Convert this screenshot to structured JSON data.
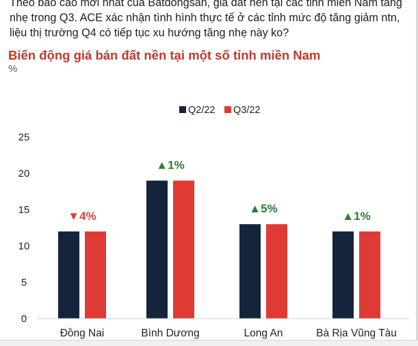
{
  "post": {
    "text": "Theo báo cáo mới nhất của Batdongsan, giá đất nền tại các tỉnh miền Nam tăng nhẹ trong Q3. ACE xác nhận tình hình thực tế ở các tỉnh mức độ tăng giảm ntn, liệu thị trường Q4 có tiếp tục xu hướng tăng nhẹ này ko?"
  },
  "chart_data": {
    "type": "bar",
    "title": "Biến động giá bán đất nền tại một số tỉnh miền Nam",
    "ylabel": "%",
    "xlabel": "",
    "ylim": [
      0,
      25
    ],
    "yticks": [
      0,
      5,
      10,
      15,
      20,
      25
    ],
    "grid": false,
    "legend_position": "top-center",
    "categories": [
      "Đồng Nai",
      "Bình Dương",
      "Long An",
      "Bà Rịa Vũng Tàu"
    ],
    "series": [
      {
        "name": "Q2/22",
        "color": "#14243b",
        "values": [
          12,
          19,
          13,
          12
        ]
      },
      {
        "name": "Q3/22",
        "color": "#e03a34",
        "values": [
          12,
          19,
          13,
          12
        ]
      }
    ],
    "annotations": [
      {
        "label": "▼4%",
        "direction": "down",
        "color": "#d9443c"
      },
      {
        "label": "▲1%",
        "direction": "up",
        "color": "#2e7d32"
      },
      {
        "label": "▲5%",
        "direction": "up",
        "color": "#2e7d32"
      },
      {
        "label": "▲1%",
        "direction": "up",
        "color": "#2e7d32"
      }
    ]
  }
}
